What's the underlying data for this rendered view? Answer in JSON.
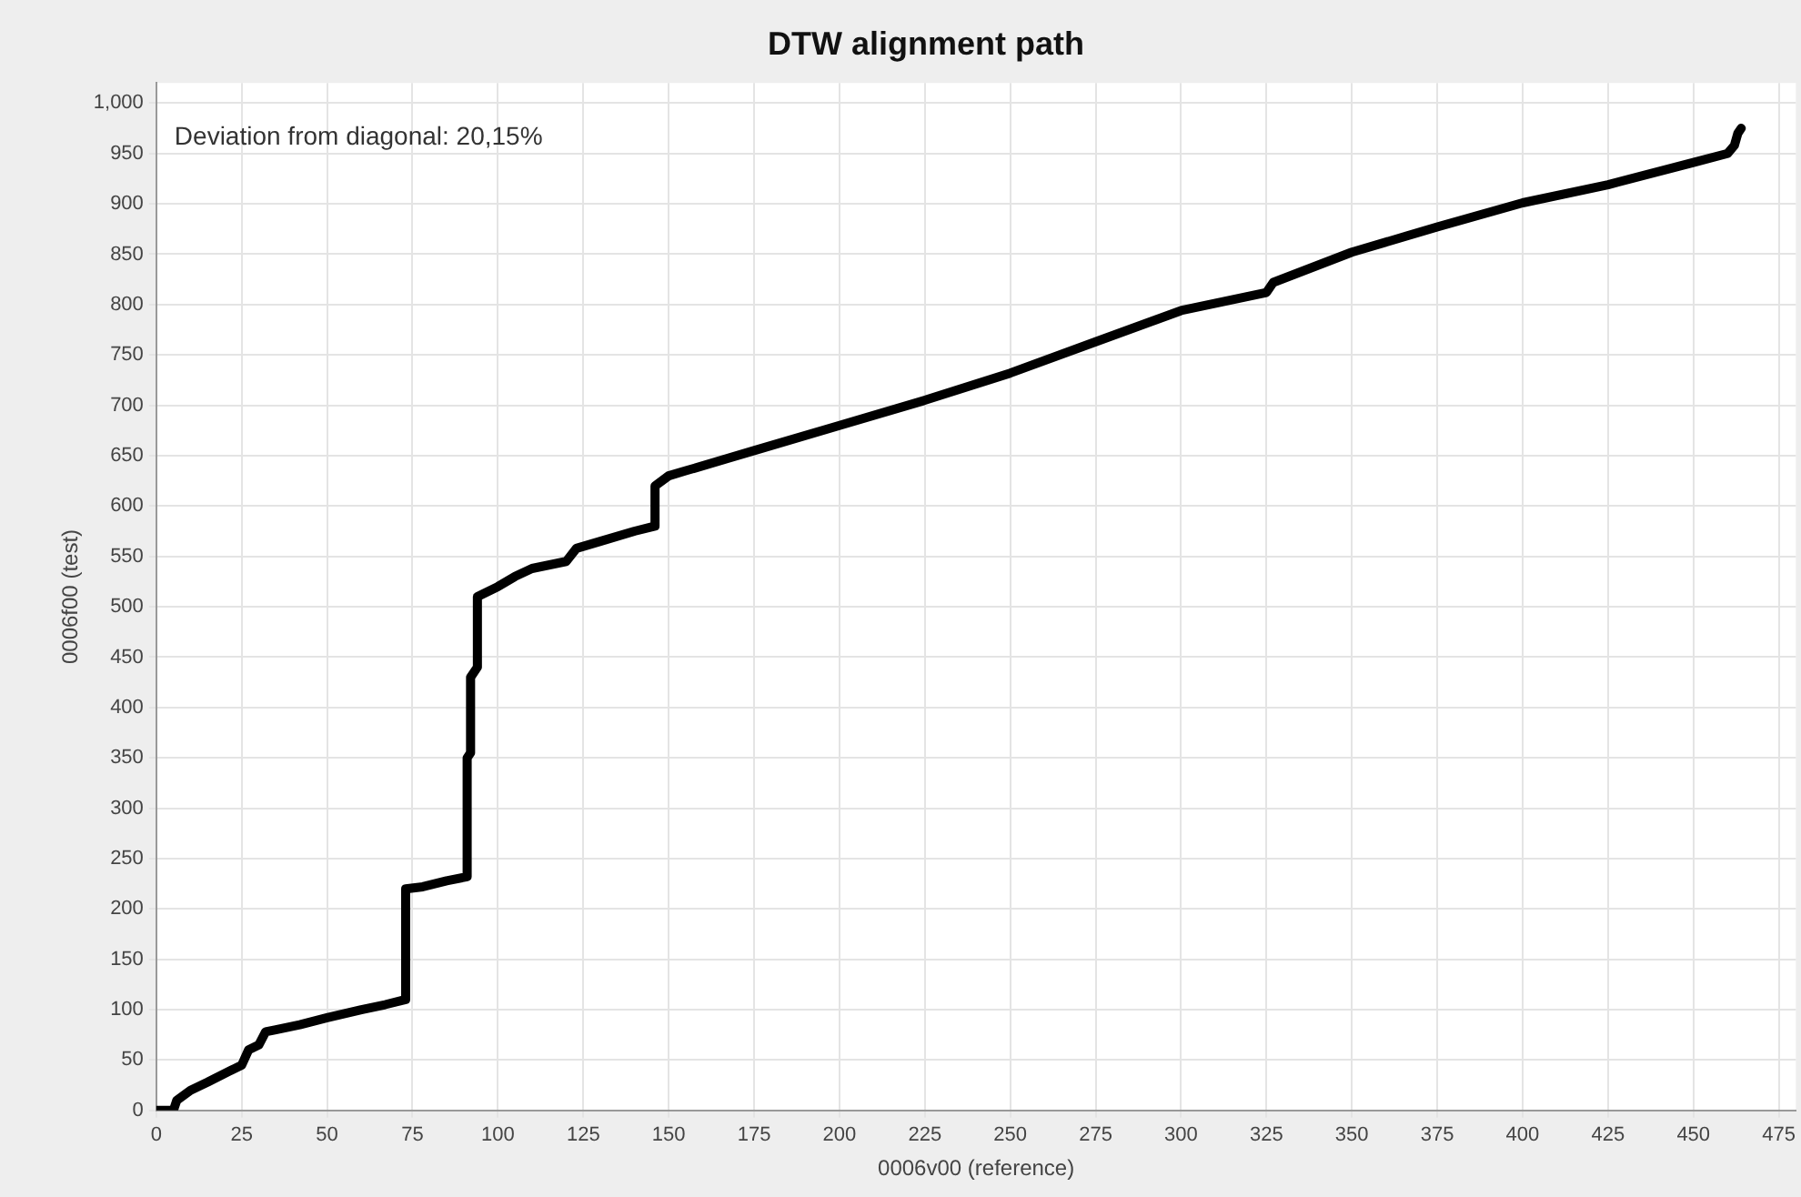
{
  "chart_data": {
    "type": "line",
    "title": "DTW alignment path",
    "xlabel": "0006v00 (reference)",
    "ylabel": "0006f00 (test)",
    "annotations": [
      "Deviation from diagonal: 20,15%"
    ],
    "xlim": [
      0,
      480
    ],
    "xticks": [
      0,
      25,
      50,
      75,
      100,
      125,
      150,
      175,
      200,
      225,
      250,
      275,
      300,
      325,
      350,
      375,
      400,
      425,
      450,
      475
    ],
    "ylim": [
      0,
      1020
    ],
    "yticks": [
      0,
      50,
      100,
      150,
      200,
      250,
      300,
      350,
      400,
      450,
      500,
      550,
      600,
      650,
      700,
      750,
      800,
      850,
      900,
      950,
      {
        "value": 1000,
        "label": "1,000"
      }
    ],
    "grid": true,
    "legend": false,
    "marker": "none",
    "line_style": "solid",
    "series": [
      {
        "color": "#000000",
        "x": [
          0,
          5,
          6,
          10,
          15,
          22,
          25,
          27,
          30,
          32,
          35,
          42,
          50,
          60,
          67,
          73,
          73,
          78,
          85,
          91,
          91,
          92,
          92,
          94,
          94,
          100,
          105,
          110,
          120,
          123,
          130,
          140,
          146,
          146,
          150,
          155,
          175,
          200,
          225,
          250,
          275,
          300,
          325,
          327,
          350,
          375,
          400,
          425,
          450,
          460,
          462,
          463,
          464
        ],
        "values": [
          0,
          0,
          10,
          20,
          28,
          40,
          45,
          60,
          65,
          78,
          80,
          85,
          92,
          100,
          105,
          110,
          220,
          222,
          228,
          232,
          350,
          355,
          430,
          440,
          510,
          520,
          530,
          538,
          545,
          558,
          565,
          575,
          580,
          620,
          630,
          635,
          655,
          680,
          705,
          732,
          763,
          794,
          812,
          822,
          852,
          877,
          901,
          919,
          941,
          950,
          958,
          970,
          975
        ]
      }
    ]
  }
}
